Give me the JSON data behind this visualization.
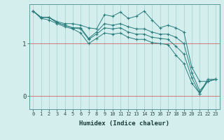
{
  "xlabel": "Humidex (Indice chaleur)",
  "ylabel": "",
  "bg_color": "#d4eeee",
  "grid_color": "#aed4d4",
  "line_color": "#2a7d7d",
  "xlim": [
    -0.5,
    23.5
  ],
  "ylim": [
    -0.25,
    1.75
  ],
  "yticks": [
    0,
    1
  ],
  "xticks": [
    0,
    1,
    2,
    3,
    4,
    5,
    6,
    7,
    8,
    9,
    10,
    11,
    12,
    13,
    14,
    15,
    16,
    17,
    18,
    19,
    20,
    21,
    22,
    23
  ],
  "red_line_color": "#cc6666",
  "lines": [
    [
      1.62,
      1.5,
      1.5,
      1.42,
      1.38,
      1.38,
      1.35,
      1.3,
      1.28,
      1.55,
      1.52,
      1.6,
      1.48,
      1.52,
      1.62,
      1.45,
      1.3,
      1.35,
      1.3,
      1.22,
      0.55,
      0.28,
      0.28,
      0.32
    ],
    [
      1.62,
      1.5,
      1.5,
      1.4,
      1.35,
      1.3,
      1.3,
      1.1,
      1.22,
      1.38,
      1.35,
      1.38,
      1.32,
      1.28,
      1.28,
      1.22,
      1.18,
      1.18,
      1.12,
      1.0,
      0.45,
      0.1,
      0.28,
      0.32
    ],
    [
      1.62,
      1.5,
      1.5,
      1.4,
      1.35,
      1.3,
      1.28,
      1.08,
      1.18,
      1.3,
      1.28,
      1.3,
      1.22,
      1.18,
      1.18,
      1.12,
      1.1,
      1.08,
      0.95,
      0.8,
      0.35,
      0.05,
      0.28,
      0.32
    ],
    [
      1.62,
      1.48,
      1.45,
      1.38,
      1.32,
      1.28,
      1.2,
      1.0,
      1.1,
      1.2,
      1.18,
      1.2,
      1.12,
      1.08,
      1.08,
      1.02,
      1.0,
      0.98,
      0.78,
      0.62,
      0.25,
      0.05,
      0.32,
      0.32
    ]
  ]
}
